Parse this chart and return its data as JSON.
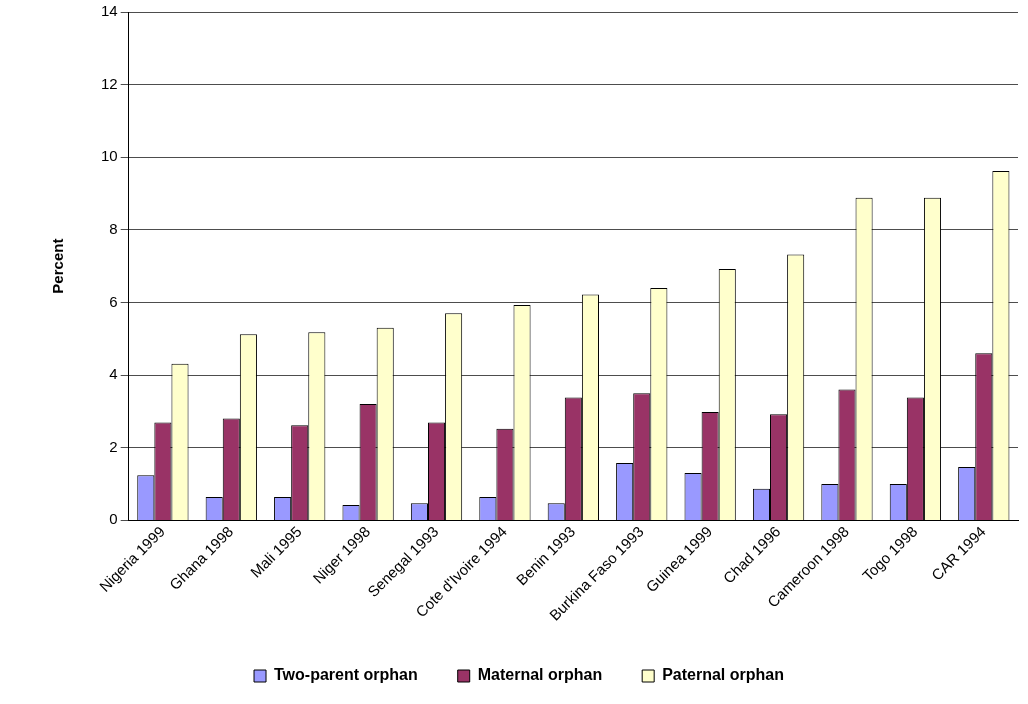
{
  "chart_data": {
    "type": "bar",
    "ylabel": "Percent",
    "categories": [
      "Nigeria 1999",
      "Ghana 1998",
      "Mali 1995",
      "Niger 1998",
      "Senegal 1993",
      "Cote d'Ivoire 1994",
      "Benin 1993",
      "Burkina Faso 1993",
      "Guinea 1999",
      "Chad 1996",
      "Cameroon 1998",
      "Togo 1998",
      "CAR 1994"
    ],
    "series": [
      {
        "name": "Two-parent orphan",
        "color": "#9999ff",
        "values": [
          1.24,
          0.64,
          0.64,
          0.42,
          0.47,
          0.64,
          0.47,
          1.58,
          1.3,
          0.87,
          1.0,
          1.0,
          1.47
        ]
      },
      {
        "name": "Maternal orphan",
        "color": "#993366",
        "values": [
          2.69,
          2.8,
          2.62,
          3.2,
          2.69,
          2.52,
          3.38,
          3.5,
          2.98,
          2.92,
          3.6,
          3.38,
          4.6
        ]
      },
      {
        "name": "Paternal orphan",
        "color": "#ffffcc",
        "values": [
          4.31,
          5.12,
          5.18,
          5.3,
          5.7,
          5.93,
          6.22,
          6.4,
          6.92,
          7.32,
          8.88,
          8.88,
          9.62
        ]
      }
    ],
    "ylim": [
      0,
      14
    ],
    "yticks": [
      0,
      2,
      4,
      6,
      8,
      10,
      12,
      14
    ],
    "grid": "y",
    "legend": "bottom"
  }
}
